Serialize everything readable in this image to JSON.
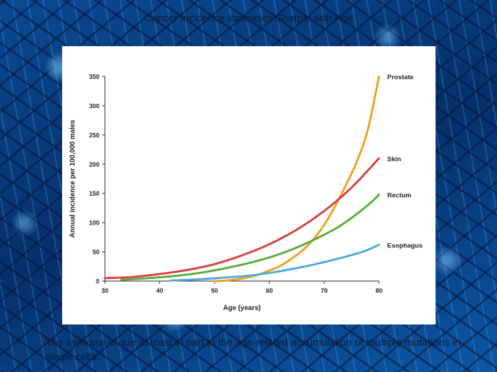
{
  "slide": {
    "title": "Cancer Incidence Increases Sharply with Age",
    "caption": "The increase is due at least in part to the age-related accumulation of multiple mutations in single cells."
  },
  "chart_data": {
    "type": "line",
    "title": "",
    "xlabel": "Age (years)",
    "ylabel": "Annual incidence per 100,000 males",
    "xlim": [
      30,
      80
    ],
    "ylim": [
      0,
      350
    ],
    "xticks": [
      30,
      40,
      50,
      60,
      70,
      80
    ],
    "yticks": [
      0,
      50,
      100,
      150,
      200,
      250,
      300,
      350
    ],
    "grid": false,
    "legend": "labels at line ends (right)",
    "series": [
      {
        "name": "Prostate",
        "color": "#f0a020",
        "x": [
          50,
          52,
          54,
          56,
          58,
          60,
          62,
          64,
          66,
          68,
          70,
          72,
          74,
          76,
          78,
          80
        ],
        "y": [
          0,
          1,
          3,
          6,
          11,
          18,
          26,
          38,
          52,
          71,
          96,
          128,
          165,
          205,
          260,
          350
        ]
      },
      {
        "name": "Skin",
        "color": "#d84040",
        "x": [
          30,
          35,
          40,
          45,
          50,
          55,
          60,
          65,
          70,
          75,
          80
        ],
        "y": [
          5,
          7,
          12,
          19,
          29,
          44,
          63,
          88,
          120,
          160,
          210
        ]
      },
      {
        "name": "Rectum",
        "color": "#5aab3c",
        "x": [
          33,
          38,
          43,
          48,
          53,
          58,
          63,
          68,
          73,
          78,
          80
        ],
        "y": [
          2,
          5,
          9,
          15,
          24,
          35,
          50,
          70,
          95,
          130,
          148
        ]
      },
      {
        "name": "Esophagus",
        "color": "#4fa8d8",
        "x": [
          42,
          47,
          52,
          57,
          62,
          67,
          72,
          77,
          80
        ],
        "y": [
          1,
          3,
          6,
          10,
          17,
          26,
          37,
          50,
          62
        ]
      }
    ]
  }
}
